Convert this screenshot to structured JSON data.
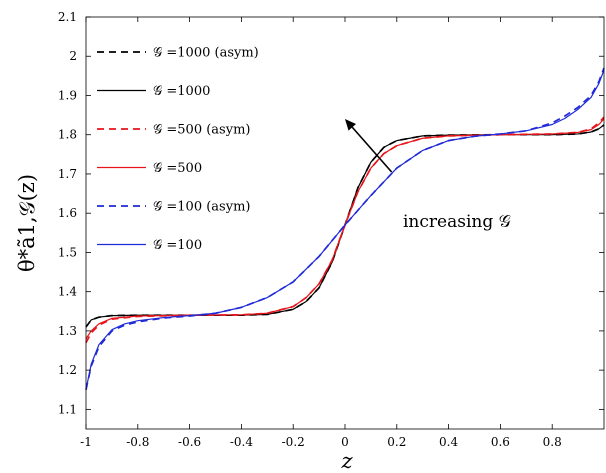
{
  "chart_data": {
    "type": "line",
    "title": "",
    "xlabel": "z",
    "ylabel": "θ*ã1,𝒢(z)",
    "xlim": [
      -1,
      1
    ],
    "ylim": [
      1.05,
      2.1
    ],
    "xticks": [
      -1,
      -0.8,
      -0.6,
      -0.4,
      -0.2,
      0,
      0.2,
      0.4,
      0.6,
      0.8
    ],
    "xtick_labels": [
      "-1",
      "-0.8",
      "-0.6",
      "-0.4",
      "-0.2",
      "0",
      "0.2",
      "0.4",
      "0.6",
      "0.8"
    ],
    "yticks": [
      1.1,
      1.2,
      1.3,
      1.4,
      1.5,
      1.6,
      1.7,
      1.8,
      1.9,
      2,
      2.1
    ],
    "ytick_labels": [
      "1.1",
      "1.2",
      "1.3",
      "1.4",
      "1.5",
      "1.6",
      "1.7",
      "1.8",
      "1.9",
      "2",
      "2.1"
    ],
    "grid": false,
    "legend_position": "top-left",
    "series": [
      {
        "name": "𝒢 =1000 (asym)",
        "color": "#000000",
        "dash": "dashed",
        "x": [
          -1,
          -0.98,
          -0.95,
          -0.9,
          -0.8,
          -0.6,
          -0.4,
          -0.3,
          -0.2,
          -0.15,
          -0.1,
          -0.05,
          0,
          0.05,
          0.1,
          0.15,
          0.2,
          0.3,
          0.4,
          0.6,
          0.8,
          0.9,
          0.95,
          0.98,
          1
        ],
        "y": [
          1.31,
          1.328,
          1.335,
          1.339,
          1.34,
          1.34,
          1.34,
          1.342,
          1.355,
          1.375,
          1.41,
          1.475,
          1.57,
          1.665,
          1.73,
          1.768,
          1.785,
          1.797,
          1.799,
          1.8,
          1.8,
          1.802,
          1.807,
          1.815,
          1.825
        ]
      },
      {
        "name": "𝒢 =1000",
        "color": "#000000",
        "dash": "solid",
        "x": [
          -1,
          -0.98,
          -0.95,
          -0.9,
          -0.8,
          -0.6,
          -0.4,
          -0.3,
          -0.2,
          -0.15,
          -0.1,
          -0.05,
          0,
          0.05,
          0.1,
          0.15,
          0.2,
          0.3,
          0.4,
          0.6,
          0.8,
          0.9,
          0.95,
          0.98,
          1
        ],
        "y": [
          1.31,
          1.328,
          1.335,
          1.339,
          1.34,
          1.34,
          1.34,
          1.342,
          1.355,
          1.375,
          1.41,
          1.475,
          1.57,
          1.665,
          1.73,
          1.768,
          1.785,
          1.797,
          1.799,
          1.8,
          1.8,
          1.802,
          1.807,
          1.815,
          1.825
        ]
      },
      {
        "name": "𝒢 =500 (asym)",
        "color": "#e8141b",
        "dash": "dashed",
        "x": [
          -1,
          -0.98,
          -0.95,
          -0.9,
          -0.8,
          -0.6,
          -0.4,
          -0.3,
          -0.2,
          -0.15,
          -0.1,
          -0.05,
          0,
          0.05,
          0.1,
          0.15,
          0.2,
          0.3,
          0.4,
          0.6,
          0.8,
          0.9,
          0.95,
          0.98,
          1
        ],
        "y": [
          1.27,
          1.295,
          1.315,
          1.33,
          1.337,
          1.34,
          1.341,
          1.345,
          1.362,
          1.385,
          1.42,
          1.48,
          1.57,
          1.655,
          1.715,
          1.752,
          1.772,
          1.791,
          1.797,
          1.8,
          1.802,
          1.806,
          1.815,
          1.83,
          1.845
        ]
      },
      {
        "name": "𝒢 =500",
        "color": "#e8141b",
        "dash": "solid",
        "x": [
          -1,
          -0.98,
          -0.95,
          -0.9,
          -0.8,
          -0.6,
          -0.4,
          -0.3,
          -0.2,
          -0.15,
          -0.1,
          -0.05,
          0,
          0.05,
          0.1,
          0.15,
          0.2,
          0.3,
          0.4,
          0.6,
          0.8,
          0.9,
          0.95,
          0.98,
          1
        ],
        "y": [
          1.28,
          1.3,
          1.318,
          1.332,
          1.338,
          1.34,
          1.341,
          1.345,
          1.362,
          1.385,
          1.42,
          1.48,
          1.57,
          1.655,
          1.715,
          1.752,
          1.772,
          1.791,
          1.797,
          1.8,
          1.802,
          1.806,
          1.813,
          1.826,
          1.84
        ]
      },
      {
        "name": "𝒢 =100 (asym)",
        "color": "#1f2ad8",
        "dash": "dashed",
        "x": [
          -1,
          -0.98,
          -0.95,
          -0.9,
          -0.85,
          -0.8,
          -0.7,
          -0.6,
          -0.5,
          -0.4,
          -0.3,
          -0.2,
          -0.1,
          0,
          0.1,
          0.2,
          0.3,
          0.4,
          0.5,
          0.6,
          0.7,
          0.8,
          0.85,
          0.9,
          0.95,
          0.98,
          1
        ],
        "y": [
          1.15,
          1.21,
          1.26,
          1.3,
          1.315,
          1.323,
          1.333,
          1.338,
          1.345,
          1.36,
          1.385,
          1.425,
          1.49,
          1.57,
          1.645,
          1.715,
          1.76,
          1.785,
          1.796,
          1.802,
          1.81,
          1.83,
          1.848,
          1.87,
          1.9,
          1.935,
          1.97
        ]
      },
      {
        "name": "𝒢 =100",
        "color": "#1f2ad8",
        "dash": "solid",
        "x": [
          -1,
          -0.98,
          -0.95,
          -0.9,
          -0.85,
          -0.8,
          -0.7,
          -0.6,
          -0.5,
          -0.4,
          -0.3,
          -0.2,
          -0.1,
          0,
          0.1,
          0.2,
          0.3,
          0.4,
          0.5,
          0.6,
          0.7,
          0.8,
          0.85,
          0.9,
          0.95,
          0.98,
          1
        ],
        "y": [
          1.15,
          1.215,
          1.265,
          1.303,
          1.318,
          1.326,
          1.334,
          1.339,
          1.345,
          1.36,
          1.385,
          1.425,
          1.49,
          1.57,
          1.645,
          1.715,
          1.76,
          1.785,
          1.796,
          1.802,
          1.81,
          1.826,
          1.842,
          1.865,
          1.895,
          1.93,
          1.965
        ]
      }
    ],
    "annotation": {
      "text": "increasing 𝒢",
      "arrow_from": [
        0.18,
        1.705
      ],
      "arrow_to": [
        0.0,
        1.84
      ]
    }
  }
}
